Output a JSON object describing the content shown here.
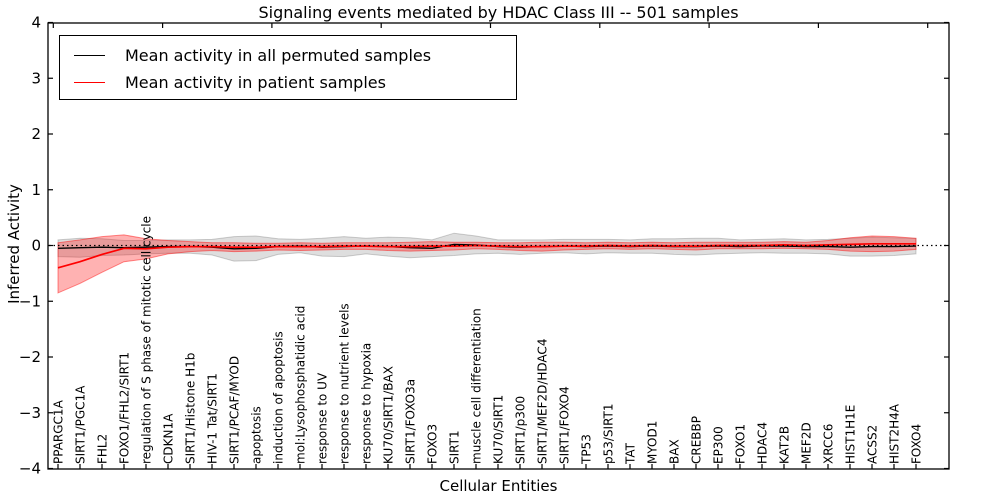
{
  "chart_data": {
    "type": "line",
    "title": "Signaling events mediated by HDAC Class III -- 501 samples",
    "xlabel": "Cellular Entities",
    "ylabel": "Inferred Activity",
    "ylim": [
      -4,
      4
    ],
    "yticks": [
      4,
      3,
      2,
      1,
      0,
      -1,
      -2,
      -3,
      -4
    ],
    "ytick_labels": [
      "4",
      "3",
      "2",
      "1",
      "0",
      "−1",
      "−2",
      "−3",
      "−4"
    ],
    "grid": false,
    "legend_position": "upper left",
    "zero_line": {
      "y": 0,
      "style": "dotted",
      "color": "#000000"
    },
    "categories": [
      "PPARGC1A",
      "SIRT1/PGC1A",
      "FHL2",
      "FOXO1/FHL2/SIRT1",
      "regulation of S phase of mitotic cell cycle",
      "CDKN1A",
      "SIRT1/Histone H1b",
      "HIV-1 Tat/SIRT1",
      "SIRT1/PCAF/MYOD",
      "apoptosis",
      "induction of apoptosis",
      "mol:Lysophosphatidic acid",
      "response to UV",
      "response to nutrient levels",
      "response to hypoxia",
      "KU70/SIRT1/BAX",
      "SIRT1/FOXO3a",
      "FOXO3",
      "SIRT1",
      "muscle cell differentiation",
      "KU70/SIRT1",
      "SIRT1/p300",
      "SIRT1/MEF2D/HDAC4",
      "SIRT1/FOXO4",
      "TP53",
      "p53/SIRT1",
      "TAT",
      "MYOD1",
      "BAX",
      "CREBBP",
      "EP300",
      "FOXO1",
      "HDAC4",
      "KAT2B",
      "MEF2D",
      "XRCC6",
      "HIST1H1E",
      "ACSS2",
      "HIST2H4A",
      "FOXO4"
    ],
    "series": [
      {
        "name": "Mean activity in all permuted samples",
        "color": "#000000",
        "band_fill": "rgba(0,0,0,0.13)",
        "band_edge": "rgba(0,0,0,0.18)",
        "line_width": 1.4,
        "values": [
          -0.05,
          -0.04,
          -0.03,
          -0.04,
          -0.03,
          -0.02,
          -0.02,
          -0.03,
          -0.06,
          -0.05,
          -0.02,
          -0.01,
          -0.03,
          -0.02,
          -0.01,
          -0.02,
          -0.04,
          -0.05,
          0.02,
          0.01,
          -0.02,
          -0.03,
          -0.02,
          -0.01,
          -0.02,
          -0.01,
          -0.02,
          -0.01,
          -0.02,
          -0.02,
          -0.01,
          -0.02,
          -0.01,
          -0.01,
          -0.02,
          -0.02,
          -0.03,
          -0.02,
          -0.02,
          -0.01
        ],
        "band_halfwidth": [
          0.15,
          0.17,
          0.15,
          0.13,
          0.12,
          0.12,
          0.12,
          0.14,
          0.22,
          0.22,
          0.14,
          0.12,
          0.16,
          0.18,
          0.14,
          0.17,
          0.18,
          0.15,
          0.2,
          0.16,
          0.12,
          0.13,
          0.12,
          0.12,
          0.13,
          0.12,
          0.12,
          0.13,
          0.14,
          0.15,
          0.14,
          0.12,
          0.12,
          0.13,
          0.12,
          0.13,
          0.16,
          0.17,
          0.16,
          0.14
        ]
      },
      {
        "name": "Mean activity in patient samples",
        "color": "#ff0000",
        "band_fill": "rgba(255,0,0,0.30)",
        "band_edge": "rgba(255,0,0,0.45)",
        "line_width": 1.7,
        "values": [
          -0.4,
          -0.29,
          -0.16,
          -0.05,
          -0.06,
          -0.03,
          -0.02,
          -0.02,
          -0.03,
          -0.03,
          -0.02,
          -0.02,
          -0.02,
          -0.01,
          -0.01,
          -0.02,
          -0.02,
          -0.01,
          -0.01,
          0.0,
          -0.01,
          -0.02,
          -0.02,
          -0.01,
          -0.01,
          0.0,
          -0.01,
          0.0,
          -0.01,
          -0.01,
          0.0,
          0.0,
          0.0,
          0.01,
          0.0,
          0.01,
          0.02,
          0.03,
          0.03,
          0.03
        ],
        "band_halfwidth": [
          0.45,
          0.39,
          0.32,
          0.24,
          0.18,
          0.12,
          0.09,
          0.07,
          0.08,
          0.07,
          0.06,
          0.07,
          0.06,
          0.06,
          0.06,
          0.07,
          0.08,
          0.08,
          0.07,
          0.06,
          0.06,
          0.07,
          0.08,
          0.07,
          0.06,
          0.06,
          0.06,
          0.06,
          0.06,
          0.07,
          0.06,
          0.06,
          0.06,
          0.06,
          0.06,
          0.08,
          0.12,
          0.14,
          0.13,
          0.1
        ]
      }
    ]
  }
}
